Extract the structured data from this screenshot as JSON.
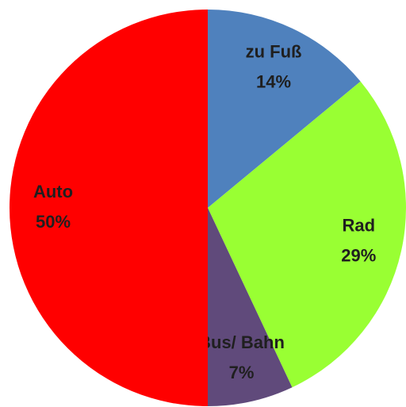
{
  "chart_data": {
    "type": "pie",
    "categories": [
      "zu Fuß",
      "Rad",
      "Bus/ Bahn",
      "Auto"
    ],
    "values": [
      14,
      29,
      7,
      50
    ],
    "value_labels": [
      "14%",
      "29%",
      "7%",
      "50%"
    ],
    "colors": [
      "#4f81bd",
      "#99ff33",
      "#604a7b",
      "#ff0000"
    ]
  }
}
